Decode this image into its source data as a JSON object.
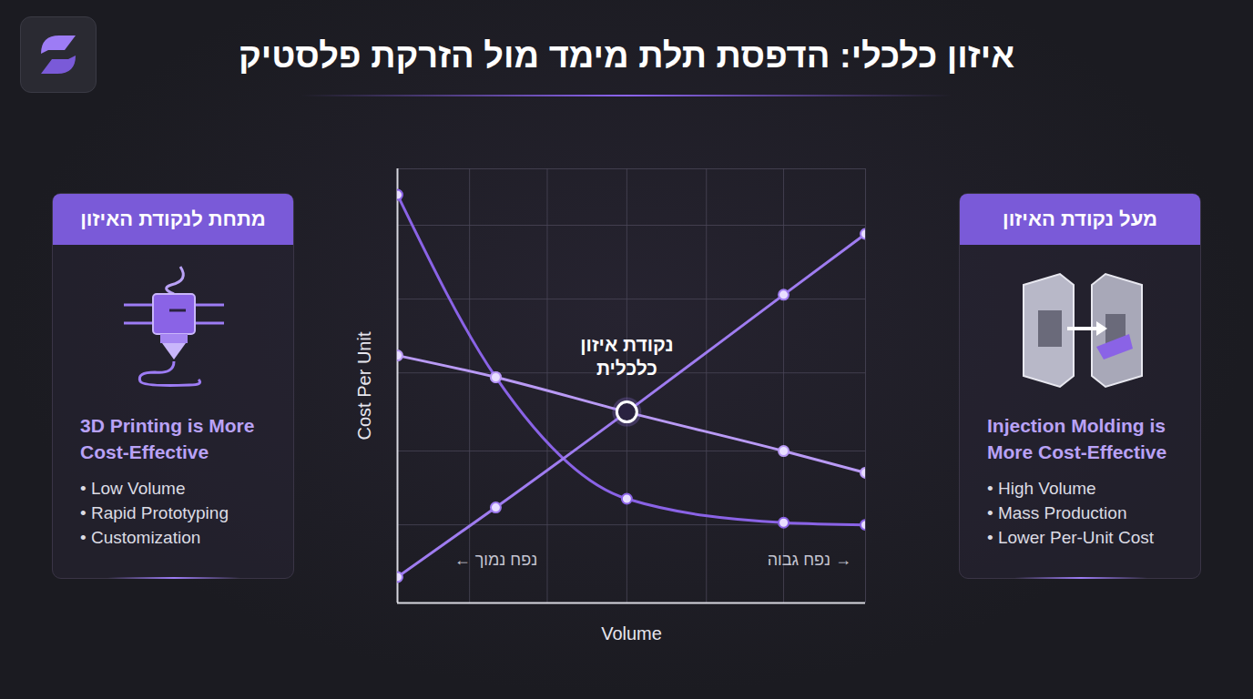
{
  "chart_data": {
    "type": "line",
    "title": "איזון כלכלי: הדפסת תלת מימד מול הזרקת פלסטיק",
    "x_label": "Volume",
    "y_label": "Cost Per Unit",
    "x": [
      0,
      2.1,
      4.9,
      8.25,
      10
    ],
    "series": [
      {
        "color": "#8a63e6",
        "marker": "circle",
        "values": [
          9.4,
          5.2,
          2.4,
          1.85,
          1.8
        ]
      },
      {
        "color": "#b99af5",
        "marker": "circle",
        "values": [
          5.7,
          5.2,
          4.4,
          3.5,
          3.0
        ]
      },
      {
        "color": "#9f7cf0",
        "marker": "circle",
        "values": [
          0.6,
          2.2,
          4.4,
          7.1,
          8.5
        ]
      }
    ],
    "xlim": [
      0,
      10
    ],
    "ylim": [
      0,
      10
    ],
    "xticks": [
      0,
      1.54,
      3.2,
      4.9,
      6.6,
      8.25,
      10
    ],
    "yticks": [
      0,
      1.8,
      3.5,
      5.3,
      7,
      8.7,
      10
    ],
    "grid": true,
    "tick_labels": false,
    "annotations": [
      {
        "text": "נקודת איזון כלכלית",
        "x": 4.9,
        "y": 4.4
      },
      {
        "text": "← נפח נמוך",
        "x": 2.1,
        "y": 1.0
      },
      {
        "text": "נפח גבוה →",
        "x": 8.8,
        "y": 1.0
      }
    ]
  },
  "panels": [
    {
      "header": "מתחת לנקודת האיזון",
      "heading": "3D Printing is More Cost-Effective",
      "bullets": [
        "Low Volume",
        "Rapid Prototyping",
        "Customization"
      ]
    },
    {
      "header": "מעל נקודת האיזון",
      "heading": "Injection Molding is More Cost-Effective",
      "bullets": [
        "High Volume",
        "Mass Production",
        "Lower Per-Unit Cost"
      ]
    }
  ]
}
